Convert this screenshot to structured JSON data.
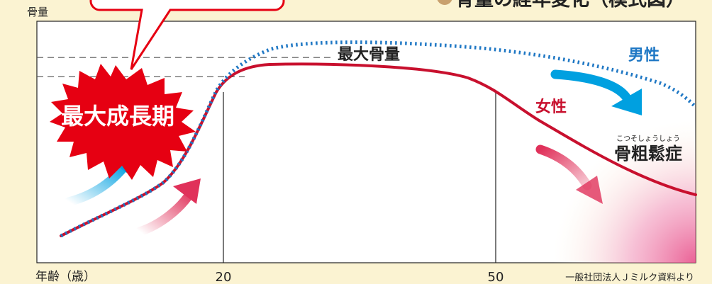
{
  "title": "骨量の経年変化（模式図）",
  "source_note": "一般社団法人Ｊミルク資料より",
  "badge": "最大成長期",
  "annotations": {
    "peak": "最大骨量",
    "osteoporosis": "骨粗鬆症",
    "osteoporosis_ruby": "こつそしょうしょう"
  },
  "colors": {
    "male": "#1e77c4",
    "female": "#c8102e",
    "background": "#fbf3d2",
    "badge": "#e60012",
    "male_arrow": "#00a0e0",
    "female_arrow": "#e0315a",
    "pink_zone": "#e8508a"
  },
  "chart_data": {
    "type": "line",
    "ylabel": "骨量",
    "xlabel": "年齢（歳）",
    "x_ticks": [
      {
        "value": 20,
        "label": "20"
      },
      {
        "value": 50,
        "label": "50"
      }
    ],
    "xlim": [
      0,
      80
    ],
    "ylim": [
      0,
      100
    ],
    "grid": false,
    "reference_lines": [
      {
        "y": 85,
        "style": "dashed"
      },
      {
        "y": 77,
        "style": "dashed"
      }
    ],
    "series": [
      {
        "name": "男性",
        "style": "dotted",
        "points": [
          [
            3,
            11
          ],
          [
            7,
            18
          ],
          [
            11,
            25
          ],
          [
            14,
            33
          ],
          [
            16,
            43
          ],
          [
            18,
            58
          ],
          [
            19,
            66
          ],
          [
            20,
            73
          ],
          [
            22,
            80
          ],
          [
            25,
            83
          ],
          [
            30,
            85
          ],
          [
            40,
            85
          ],
          [
            50,
            83
          ],
          [
            60,
            80
          ],
          [
            66,
            77
          ],
          [
            70,
            72
          ],
          [
            73,
            66
          ],
          [
            75,
            60
          ]
        ]
      },
      {
        "name": "女性",
        "style": "solid",
        "points": [
          [
            3,
            11
          ],
          [
            7,
            18
          ],
          [
            11,
            25
          ],
          [
            14,
            33
          ],
          [
            16,
            43
          ],
          [
            18,
            58
          ],
          [
            19,
            66
          ],
          [
            20,
            72
          ],
          [
            22,
            76
          ],
          [
            25,
            77
          ],
          [
            35,
            77
          ],
          [
            45,
            75
          ],
          [
            50,
            72
          ],
          [
            55,
            65
          ],
          [
            60,
            55
          ],
          [
            65,
            47
          ],
          [
            70,
            40
          ],
          [
            75,
            34
          ]
        ]
      }
    ]
  }
}
